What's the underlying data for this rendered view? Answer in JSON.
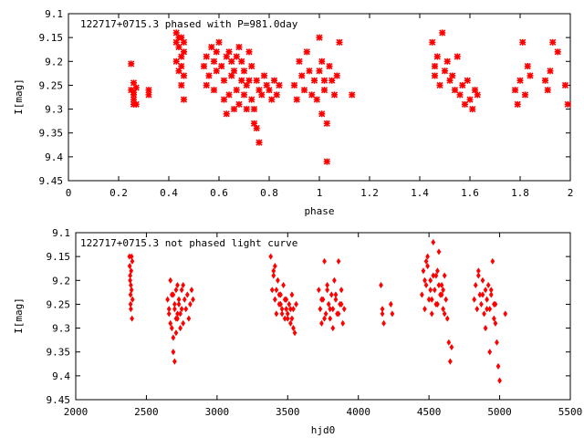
{
  "chart_data": [
    {
      "type": "scatter",
      "title": "122717+0715.3 phased with P=981.0day",
      "xlabel": "phase",
      "ylabel": "I[mag]",
      "xlim": [
        0,
        2
      ],
      "ylim": [
        9.45,
        9.1
      ],
      "y_inverted": true,
      "grid": false,
      "xticks": [
        0,
        0.2,
        0.4,
        0.6,
        0.8,
        1,
        1.2,
        1.4,
        1.6,
        1.8,
        2
      ],
      "xtick_labels": [
        "0",
        "0.2",
        "0.4",
        "0.6",
        "0.8",
        "1",
        "1.2",
        "1.4",
        "1.6",
        "1.8",
        "2"
      ],
      "yticks": [
        9.1,
        9.15,
        9.2,
        9.25,
        9.3,
        9.35,
        9.4,
        9.45
      ],
      "ytick_labels": [
        "9.1",
        "9.15",
        "9.2",
        "9.25",
        "9.3",
        "9.35",
        "9.4",
        "9.45"
      ],
      "marker_color": "#ff0000",
      "marker": "cross",
      "series": [
        {
          "x": [
            0.25,
            0.25,
            0.26,
            0.26,
            0.26,
            0.26,
            0.26,
            0.27,
            0.27,
            0.32,
            0.32,
            0.43,
            0.43,
            0.43,
            0.44,
            0.44,
            0.44,
            0.45,
            0.45,
            0.45,
            0.45,
            0.46,
            0.46,
            0.46,
            0.46,
            0.54,
            0.55,
            0.55,
            0.56,
            0.57,
            0.58,
            0.58,
            0.59,
            0.59,
            0.6,
            0.61,
            0.62,
            0.62,
            0.63,
            0.63,
            0.64,
            0.64,
            0.65,
            0.65,
            0.66,
            0.66,
            0.67,
            0.67,
            0.68,
            0.68,
            0.69,
            0.69,
            0.7,
            0.7,
            0.71,
            0.71,
            0.72,
            0.72,
            0.73,
            0.73,
            0.74,
            0.74,
            0.75,
            0.75,
            0.76,
            0.76,
            0.77,
            0.78,
            0.79,
            0.8,
            0.81,
            0.82,
            0.83,
            0.84,
            0.9,
            0.91,
            0.92,
            0.93,
            0.94,
            0.95,
            0.96,
            0.97,
            0.98,
            0.99,
            1.0,
            1.0,
            1.01,
            1.01,
            1.02,
            1.02,
            1.03,
            1.03,
            1.04,
            1.05,
            1.06,
            1.07,
            1.08,
            1.13,
            1.45,
            1.46,
            1.46,
            1.47,
            1.48,
            1.49,
            1.5,
            1.51,
            1.52,
            1.53,
            1.54,
            1.55,
            1.56,
            1.57,
            1.58,
            1.59,
            1.6,
            1.61,
            1.62,
            1.63,
            1.78,
            1.79,
            1.8,
            1.81,
            1.82,
            1.83,
            1.84,
            1.9,
            1.91,
            1.92,
            1.93,
            1.95,
            1.98,
            1.99
          ],
          "y": [
            9.205,
            9.26,
            9.27,
            9.28,
            9.29,
            9.265,
            9.245,
            9.29,
            9.255,
            9.26,
            9.27,
            9.14,
            9.16,
            9.2,
            9.15,
            9.22,
            9.17,
            9.19,
            9.21,
            9.15,
            9.25,
            9.23,
            9.28,
            9.16,
            9.18,
            9.21,
            9.25,
            9.19,
            9.23,
            9.17,
            9.2,
            9.26,
            9.22,
            9.18,
            9.16,
            9.21,
            9.24,
            9.28,
            9.19,
            9.31,
            9.18,
            9.27,
            9.2,
            9.23,
            9.22,
            9.3,
            9.19,
            9.26,
            9.17,
            9.29,
            9.24,
            9.2,
            9.27,
            9.22,
            9.25,
            9.3,
            9.18,
            9.24,
            9.28,
            9.21,
            9.3,
            9.33,
            9.24,
            9.34,
            9.37,
            9.26,
            9.27,
            9.23,
            9.25,
            9.26,
            9.28,
            9.24,
            9.27,
            9.25,
            9.25,
            9.28,
            9.2,
            9.23,
            9.26,
            9.18,
            9.22,
            9.27,
            9.24,
            9.28,
            9.15,
            9.22,
            9.2,
            9.31,
            9.24,
            9.26,
            9.33,
            9.41,
            9.21,
            9.24,
            9.27,
            9.23,
            9.16,
            9.27,
            9.16,
            9.23,
            9.21,
            9.19,
            9.25,
            9.14,
            9.22,
            9.2,
            9.24,
            9.23,
            9.26,
            9.19,
            9.27,
            9.25,
            9.29,
            9.24,
            9.28,
            9.3,
            9.26,
            9.27,
            9.26,
            9.29,
            9.24,
            9.16,
            9.27,
            9.21,
            9.23,
            9.24,
            9.26,
            9.22,
            9.16,
            9.18,
            9.25,
            9.29
          ]
        }
      ]
    },
    {
      "type": "scatter",
      "title": "122717+0715.3 not phased light curve",
      "xlabel": "hjd0",
      "ylabel": "I[mag]",
      "xlim": [
        2000,
        5500
      ],
      "ylim": [
        9.45,
        9.1
      ],
      "y_inverted": true,
      "grid": false,
      "xticks": [
        2000,
        2500,
        3000,
        3500,
        4000,
        4500,
        5000,
        5500
      ],
      "xtick_labels": [
        "2000",
        "2500",
        "3000",
        "3500",
        "4000",
        "4500",
        "5000",
        "5500"
      ],
      "yticks": [
        9.1,
        9.15,
        9.2,
        9.25,
        9.3,
        9.35,
        9.4,
        9.45
      ],
      "ytick_labels": [
        "9.1",
        "9.15",
        "9.2",
        "9.25",
        "9.3",
        "9.35",
        "9.4",
        "9.45"
      ],
      "marker_color": "#ff0000",
      "marker": "diamond",
      "series": [
        {
          "x": [
            2380,
            2382,
            2385,
            2388,
            2390,
            2392,
            2395,
            2398,
            2400,
            2402,
            2385,
            2390,
            2395,
            2388,
            2650,
            2660,
            2670,
            2680,
            2690,
            2700,
            2710,
            2720,
            2730,
            2740,
            2750,
            2760,
            2770,
            2780,
            2790,
            2800,
            2810,
            2820,
            2830,
            2660,
            2670,
            2680,
            2690,
            2700,
            2710,
            2720,
            2730,
            2740,
            2750,
            2760,
            2690,
            2700,
            2710,
            2720,
            3380,
            3390,
            3400,
            3410,
            3420,
            3430,
            3440,
            3450,
            3460,
            3470,
            3480,
            3490,
            3500,
            3510,
            3520,
            3530,
            3540,
            3550,
            3560,
            3400,
            3420,
            3440,
            3460,
            3480,
            3500,
            3520,
            3540,
            3410,
            3450,
            3490,
            3530,
            3720,
            3730,
            3740,
            3750,
            3760,
            3770,
            3780,
            3790,
            3800,
            3810,
            3820,
            3830,
            3840,
            3850,
            3860,
            3870,
            3880,
            3890,
            3900,
            3740,
            3760,
            3780,
            3800,
            3820,
            3840,
            3860,
            3880,
            4160,
            4170,
            4180,
            4170,
            4230,
            4240,
            4450,
            4460,
            4470,
            4480,
            4490,
            4500,
            4510,
            4520,
            4530,
            4540,
            4550,
            4560,
            4570,
            4580,
            4590,
            4600,
            4610,
            4620,
            4630,
            4640,
            4650,
            4660,
            4470,
            4490,
            4510,
            4530,
            4550,
            4570,
            4590,
            4610,
            4480,
            4520,
            4560,
            4600,
            4820,
            4830,
            4840,
            4850,
            4860,
            4870,
            4880,
            4890,
            4900,
            4910,
            4920,
            4930,
            4940,
            4950,
            4960,
            4970,
            4980,
            4990,
            5000,
            5040,
            4850,
            4880,
            4910,
            4940,
            4970,
            4900,
            4930,
            4960
          ],
          "y": [
            9.15,
            9.17,
            9.2,
            9.23,
            9.26,
            9.18,
            9.22,
            9.28,
            9.16,
            9.24,
            9.19,
            9.21,
            9.15,
            9.25,
            9.24,
            9.27,
            9.2,
            9.3,
            9.23,
            9.26,
            9.28,
            9.21,
            9.25,
            9.27,
            9.22,
            9.29,
            9.24,
            9.26,
            9.23,
            9.28,
            9.25,
            9.22,
            9.24,
            9.26,
            9.29,
            9.23,
            9.32,
            9.25,
            9.22,
            9.27,
            9.24,
            9.3,
            9.26,
            9.21,
            9.35,
            9.37,
            9.31,
            9.28,
            9.15,
            9.22,
            9.18,
            9.24,
            9.27,
            9.2,
            9.23,
            9.25,
            9.26,
            9.21,
            9.28,
            9.24,
            9.27,
            9.25,
            9.29,
            9.23,
            9.26,
            9.31,
            9.25,
            9.19,
            9.22,
            9.25,
            9.27,
            9.24,
            9.28,
            9.26,
            9.3,
            9.17,
            9.23,
            9.26,
            9.28,
            9.22,
            9.26,
            9.29,
            9.24,
            9.16,
            9.27,
            9.21,
            9.25,
            9.28,
            9.23,
            9.26,
            9.2,
            9.24,
            9.27,
            9.16,
            9.25,
            9.22,
            9.29,
            9.26,
            9.24,
            9.28,
            9.22,
            9.26,
            9.3,
            9.23,
            9.27,
            9.25,
            9.21,
            9.26,
            9.29,
            9.27,
            9.25,
            9.27,
            9.23,
            9.18,
            9.26,
            9.21,
            9.15,
            9.24,
            9.2,
            9.27,
            9.12,
            9.22,
            9.19,
            9.25,
            9.14,
            9.23,
            9.21,
            9.26,
            9.19,
            9.24,
            9.28,
            9.33,
            9.37,
            9.34,
            9.2,
            9.17,
            9.22,
            9.19,
            9.25,
            9.21,
            9.23,
            9.27,
            9.16,
            9.24,
            9.18,
            9.22,
            9.24,
            9.21,
            9.26,
            9.18,
            9.23,
            9.25,
            9.2,
            9.27,
            9.22,
            9.24,
            9.21,
            9.26,
            9.23,
            9.16,
            9.25,
            9.29,
            9.33,
            9.38,
            9.41,
            9.27,
            9.19,
            9.23,
            9.26,
            9.22,
            9.25,
            9.3,
            9.35,
            9.28
          ]
        }
      ]
    }
  ]
}
